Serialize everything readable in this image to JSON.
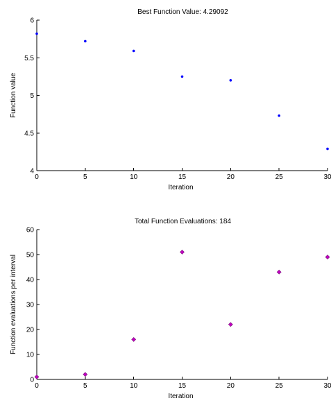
{
  "chart_data": [
    {
      "type": "scatter",
      "title": "Best Function Value: 4.29092",
      "xlabel": "Iteration",
      "ylabel": "Function value",
      "xlim": [
        0,
        30
      ],
      "ylim": [
        4,
        6
      ],
      "xticks": [
        0,
        5,
        10,
        15,
        20,
        25,
        30
      ],
      "yticks": [
        4,
        4.5,
        5,
        5.5,
        6
      ],
      "yticklabels": [
        "4",
        "4.5",
        "5",
        "5.5",
        "6"
      ],
      "marker": "dot",
      "color": "#0000ff",
      "x": [
        0,
        5,
        10,
        15,
        20,
        25,
        30
      ],
      "y": [
        5.82,
        5.72,
        5.59,
        5.25,
        5.2,
        4.73,
        4.29
      ]
    },
    {
      "type": "scatter",
      "title": "Total Function Evaluations: 184",
      "xlabel": "Iteration",
      "ylabel": "Function evaluations per interval",
      "xlim": [
        0,
        30
      ],
      "ylim": [
        0,
        60
      ],
      "xticks": [
        0,
        5,
        10,
        15,
        20,
        25,
        30
      ],
      "yticks": [
        0,
        10,
        20,
        30,
        40,
        50,
        60
      ],
      "yticklabels": [
        "0",
        "10",
        "20",
        "30",
        "40",
        "50",
        "60"
      ],
      "marker": "diamond",
      "color": "#c000c0",
      "x": [
        0,
        5,
        10,
        15,
        20,
        25,
        30
      ],
      "y": [
        1,
        2,
        16,
        51,
        22,
        43,
        49
      ]
    }
  ]
}
